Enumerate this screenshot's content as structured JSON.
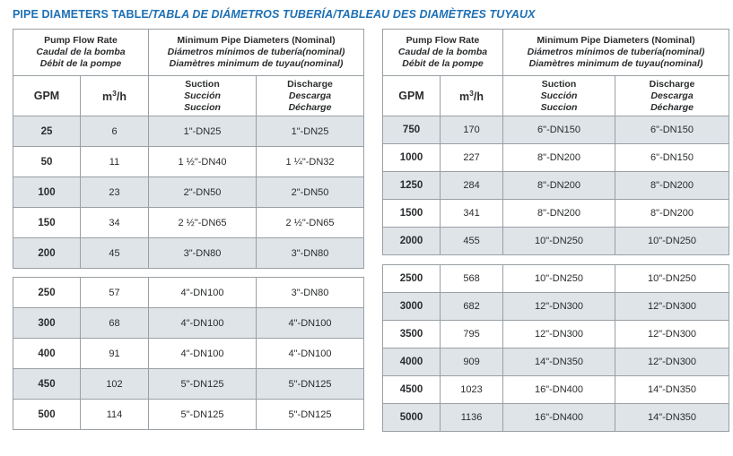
{
  "title": {
    "en": "PIPE DIAMETERS TABLE",
    "rest": "/TABLA DE DIÁMETROS TUBERÍA/TABLEAU DES DIAMÈTRES TUYAUX"
  },
  "header": {
    "flow": {
      "en": "Pump Flow Rate",
      "es": "Caudal de la bomba",
      "fr": "Débit de la pompe"
    },
    "diameters": {
      "en": "Minimum Pipe Diameters (Nominal)",
      "es": "Diámetros mínimos de tubería(nominal)",
      "fr": "Diamètres minimum de tuyau(nominal)"
    },
    "gpm": "GPM",
    "m3h": {
      "m": "m",
      "sup": "3",
      "per": "/h"
    },
    "suction": {
      "en": "Suction",
      "es": "Succión",
      "fr": "Succion"
    },
    "discharge": {
      "en": "Discharge",
      "es": "Descarga",
      "fr": "Décharge"
    }
  },
  "tables": [
    {
      "name": "low-flow",
      "sections": [
        {
          "rows": [
            [
              "25",
              "6",
              "1\"-DN25",
              "1\"-DN25"
            ],
            [
              "50",
              "11",
              "1 ½\"-DN40",
              "1 ¼\"-DN32"
            ],
            [
              "100",
              "23",
              "2\"-DN50",
              "2\"-DN50"
            ],
            [
              "150",
              "34",
              "2 ½\"-DN65",
              "2 ½\"-DN65"
            ],
            [
              "200",
              "45",
              "3\"-DN80",
              "3\"-DN80"
            ]
          ]
        },
        {
          "rows": [
            [
              "250",
              "57",
              "4\"-DN100",
              "3\"-DN80"
            ],
            [
              "300",
              "68",
              "4\"-DN100",
              "4\"-DN100"
            ],
            [
              "400",
              "91",
              "4\"-DN100",
              "4\"-DN100"
            ],
            [
              "450",
              "102",
              "5\"-DN125",
              "5\"-DN125"
            ],
            [
              "500",
              "114",
              "5\"-DN125",
              "5\"-DN125"
            ]
          ]
        }
      ]
    },
    {
      "name": "high-flow",
      "sections": [
        {
          "rows": [
            [
              "750",
              "170",
              "6\"-DN150",
              "6\"-DN150"
            ],
            [
              "1000",
              "227",
              "8\"-DN200",
              "6\"-DN150"
            ],
            [
              "1250",
              "284",
              "8\"-DN200",
              "8\"-DN200"
            ],
            [
              "1500",
              "341",
              "8\"-DN200",
              "8\"-DN200"
            ],
            [
              "2000",
              "455",
              "10\"-DN250",
              "10\"-DN250"
            ]
          ]
        },
        {
          "rows": [
            [
              "2500",
              "568",
              "10\"-DN250",
              "10\"-DN250"
            ],
            [
              "3000",
              "682",
              "12\"-DN300",
              "12\"-DN300"
            ],
            [
              "3500",
              "795",
              "12\"-DN300",
              "12\"-DN300"
            ],
            [
              "4000",
              "909",
              "14\"-DN350",
              "12\"-DN300"
            ],
            [
              "4500",
              "1023",
              "16\"-DN400",
              "14\"-DN350"
            ],
            [
              "5000",
              "1136",
              "16\"-DN400",
              "14\"-DN350"
            ]
          ]
        }
      ]
    }
  ],
  "colors": {
    "accent_blue": "#1d70b5",
    "row_shade": "#dfe4e8",
    "border": "#999fa4",
    "text": "#2a2c2e"
  }
}
